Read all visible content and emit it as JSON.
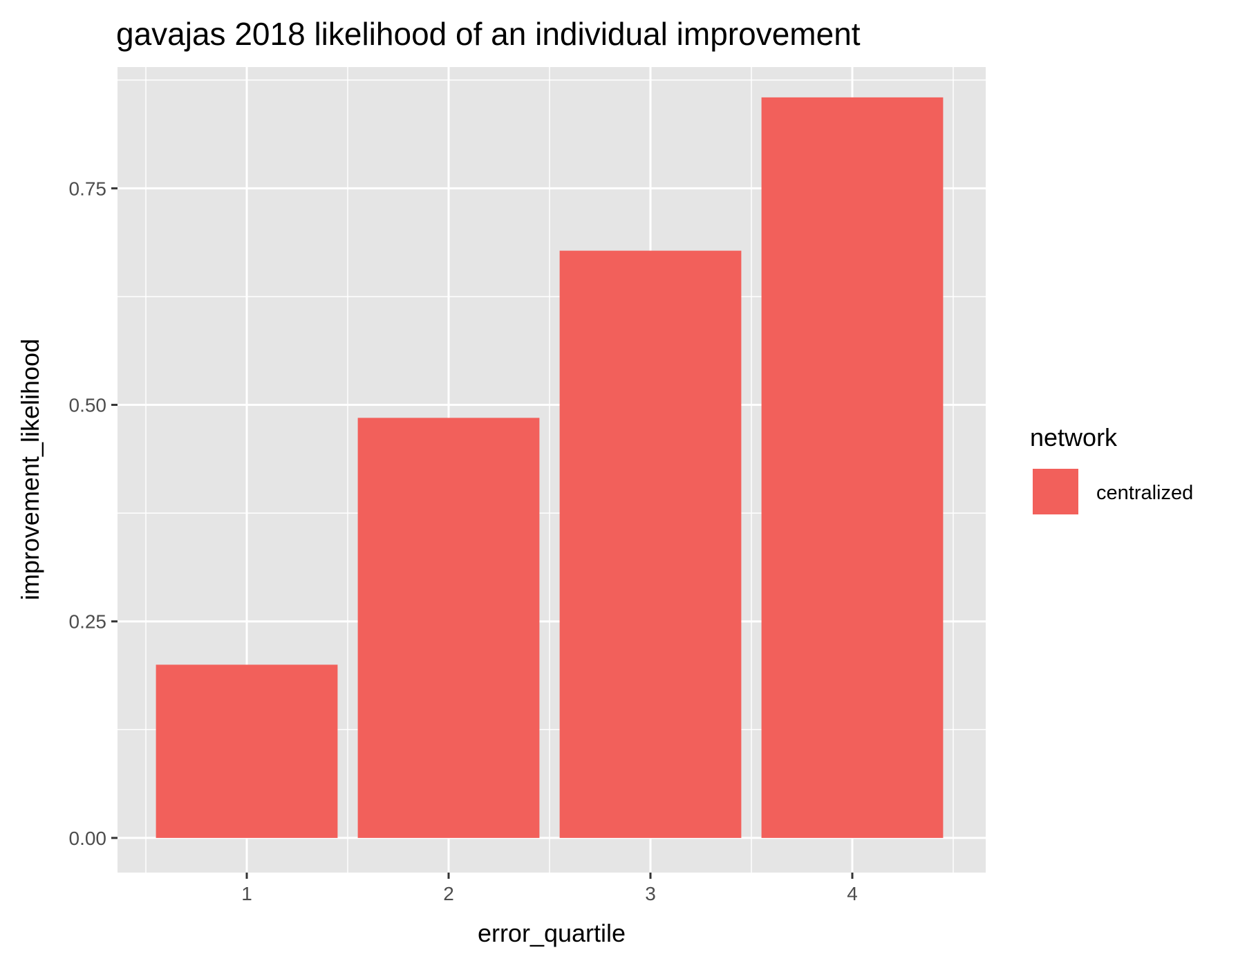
{
  "chart_data": {
    "type": "bar",
    "title": "gavajas 2018 likelihood of an individual improvement",
    "xlabel": "error_quartile",
    "ylabel": "improvement_likelihood",
    "categories": [
      "1",
      "2",
      "3",
      "4"
    ],
    "series": [
      {
        "name": "centralized",
        "values": [
          0.2,
          0.485,
          0.678,
          0.855
        ],
        "color": "#F2605B"
      }
    ],
    "ylim": [
      -0.04,
      0.89
    ],
    "yticks": [
      0.0,
      0.25,
      0.5,
      0.75
    ],
    "ytick_labels": [
      "0.00",
      "0.25",
      "0.50",
      "0.75"
    ],
    "grid": true,
    "panel_background": "#E5E5E5",
    "grid_color": "#FFFFFF",
    "legend": {
      "title": "network",
      "position": "right"
    }
  }
}
